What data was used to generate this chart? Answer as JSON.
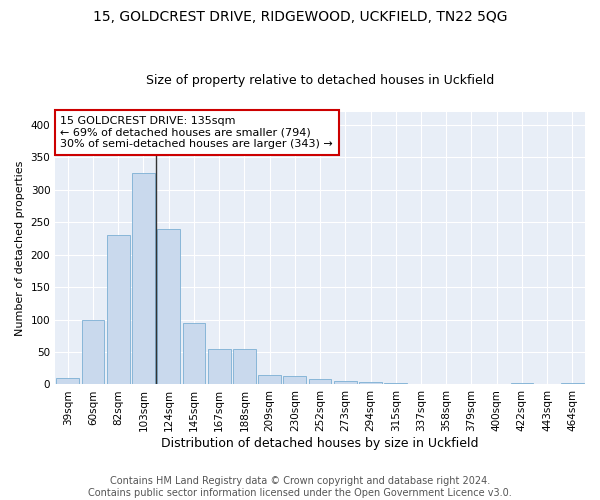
{
  "title1": "15, GOLDCREST DRIVE, RIDGEWOOD, UCKFIELD, TN22 5QG",
  "title2": "Size of property relative to detached houses in Uckfield",
  "xlabel": "Distribution of detached houses by size in Uckfield",
  "ylabel": "Number of detached properties",
  "categories": [
    "39sqm",
    "60sqm",
    "82sqm",
    "103sqm",
    "124sqm",
    "145sqm",
    "167sqm",
    "188sqm",
    "209sqm",
    "230sqm",
    "252sqm",
    "273sqm",
    "294sqm",
    "315sqm",
    "337sqm",
    "358sqm",
    "379sqm",
    "400sqm",
    "422sqm",
    "443sqm",
    "464sqm"
  ],
  "values": [
    10,
    100,
    230,
    325,
    240,
    95,
    55,
    55,
    15,
    13,
    8,
    6,
    4,
    3,
    0,
    0,
    0,
    0,
    3,
    0,
    3
  ],
  "bar_color": "#c9d9ed",
  "bar_edge_color": "#7bafd4",
  "highlight_bar_index": 4,
  "highlight_line_color": "#333333",
  "annotation_text": "15 GOLDCREST DRIVE: 135sqm\n← 69% of detached houses are smaller (794)\n30% of semi-detached houses are larger (343) →",
  "annotation_box_color": "#ffffff",
  "annotation_box_edge_color": "#cc0000",
  "ylim": [
    0,
    420
  ],
  "yticks": [
    0,
    50,
    100,
    150,
    200,
    250,
    300,
    350,
    400
  ],
  "fig_bg_color": "#ffffff",
  "ax_bg_color": "#e8eef7",
  "grid_color": "#ffffff",
  "footer_text": "Contains HM Land Registry data © Crown copyright and database right 2024.\nContains public sector information licensed under the Open Government Licence v3.0.",
  "title1_fontsize": 10,
  "title2_fontsize": 9,
  "xlabel_fontsize": 9,
  "ylabel_fontsize": 8,
  "tick_fontsize": 7.5,
  "annotation_fontsize": 8,
  "footer_fontsize": 7
}
